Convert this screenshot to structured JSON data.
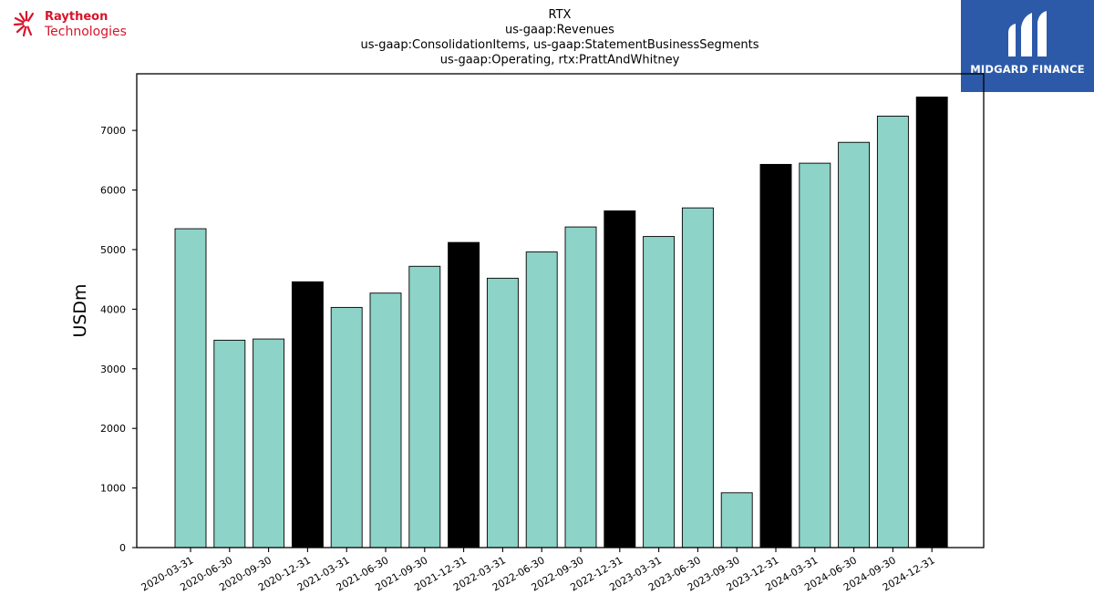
{
  "logos": {
    "left": {
      "brand": "Raytheon",
      "sub": "Technologies",
      "icon": "raytheon-burst-icon",
      "color": "#d7142a"
    },
    "right": {
      "brand": "MIDGARD FINANCE",
      "icon": "midgard-m-icon",
      "color": "#2c5aa8"
    }
  },
  "chart_data": {
    "type": "bar",
    "title": [
      "RTX",
      "us-gaap:Revenues",
      "us-gaap:ConsolidationItems, us-gaap:StatementBusinessSegments",
      "us-gaap:Operating, rtx:PrattAndWhitney"
    ],
    "xlabel": "",
    "ylabel": "USDm",
    "ylim": [
      0,
      7950
    ],
    "yticks": [
      0,
      1000,
      2000,
      3000,
      4000,
      5000,
      6000,
      7000
    ],
    "grid": false,
    "categories": [
      "2020-03-31",
      "2020-06-30",
      "2020-09-30",
      "2020-12-31",
      "2021-03-31",
      "2021-06-30",
      "2021-09-30",
      "2021-12-31",
      "2022-03-31",
      "2022-06-30",
      "2022-09-30",
      "2022-12-31",
      "2023-03-31",
      "2023-06-30",
      "2023-09-30",
      "2023-12-31",
      "2024-03-31",
      "2024-06-30",
      "2024-09-30",
      "2024-12-31"
    ],
    "values": [
      5350,
      3480,
      3500,
      4460,
      4030,
      4270,
      4720,
      5120,
      4520,
      4960,
      5380,
      5650,
      5220,
      5700,
      920,
      6430,
      6450,
      6800,
      7240,
      7560
    ],
    "colors": {
      "quarter": "#8dd3c7",
      "year_end": "#000000",
      "edge": "#000000"
    }
  }
}
